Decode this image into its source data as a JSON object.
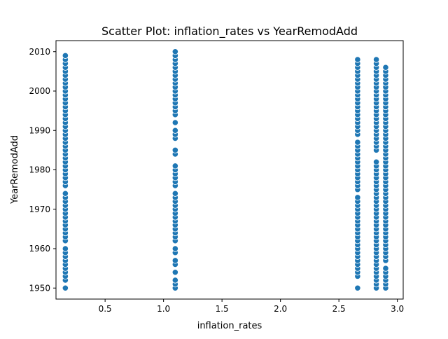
{
  "chart_data": {
    "type": "scatter",
    "title": "Scatter Plot: inflation_rates vs YearRemodAdd",
    "xlabel": "inflation_rates",
    "ylabel": "YearRemodAdd",
    "xlim": [
      0.08,
      3.05
    ],
    "ylim": [
      1947.2,
      2012.8
    ],
    "xticks": [
      0.5,
      1.0,
      1.5,
      2.0,
      2.5,
      3.0
    ],
    "xtick_labels": [
      "0.5",
      "1.0",
      "1.5",
      "2.0",
      "2.5",
      "3.0"
    ],
    "yticks": [
      1950,
      1960,
      1970,
      1980,
      1990,
      2000,
      2010
    ],
    "ytick_labels": [
      "1950",
      "1960",
      "1970",
      "1980",
      "1990",
      "2000",
      "2010"
    ],
    "grid": false,
    "marker_color": "#1f77b4",
    "marker_edge_color": "#ffffff",
    "series": [
      {
        "x_value": 0.16,
        "years": [
          1950,
          1952,
          1953,
          1954,
          1955,
          1956,
          1957,
          1958,
          1959,
          1960,
          1962,
          1963,
          1964,
          1965,
          1966,
          1967,
          1968,
          1969,
          1970,
          1971,
          1972,
          1973,
          1974,
          1976,
          1977,
          1978,
          1979,
          1980,
          1981,
          1982,
          1983,
          1984,
          1985,
          1986,
          1987,
          1988,
          1989,
          1990,
          1991,
          1992,
          1993,
          1994,
          1995,
          1996,
          1997,
          1998,
          1999,
          2000,
          2001,
          2002,
          2003,
          2004,
          2005,
          2006,
          2007,
          2008,
          2009
        ]
      },
      {
        "x_value": 1.1,
        "years": [
          1950,
          1951,
          1952,
          1954,
          1956,
          1957,
          1959,
          1960,
          1962,
          1963,
          1964,
          1965,
          1966,
          1967,
          1968,
          1969,
          1970,
          1971,
          1972,
          1973,
          1974,
          1976,
          1977,
          1978,
          1979,
          1980,
          1981,
          1984,
          1985,
          1988,
          1989,
          1990,
          1992,
          1994,
          1995,
          1996,
          1997,
          1998,
          1999,
          2000,
          2001,
          2002,
          2003,
          2004,
          2005,
          2006,
          2007,
          2008,
          2009,
          2010
        ]
      },
      {
        "x_value": 2.66,
        "years": [
          1950,
          1953,
          1954,
          1955,
          1956,
          1957,
          1958,
          1959,
          1960,
          1961,
          1962,
          1963,
          1964,
          1965,
          1966,
          1967,
          1968,
          1969,
          1970,
          1971,
          1972,
          1973,
          1975,
          1976,
          1977,
          1978,
          1979,
          1980,
          1981,
          1982,
          1983,
          1984,
          1985,
          1986,
          1987,
          1989,
          1990,
          1991,
          1992,
          1993,
          1994,
          1995,
          1996,
          1997,
          1998,
          1999,
          2000,
          2001,
          2002,
          2003,
          2004,
          2005,
          2006,
          2007,
          2008
        ]
      },
      {
        "x_value": 2.82,
        "years": [
          1950,
          1951,
          1952,
          1953,
          1954,
          1955,
          1956,
          1957,
          1958,
          1959,
          1960,
          1961,
          1962,
          1963,
          1964,
          1965,
          1966,
          1967,
          1968,
          1969,
          1970,
          1971,
          1972,
          1973,
          1974,
          1975,
          1976,
          1977,
          1978,
          1979,
          1980,
          1981,
          1982,
          1985,
          1986,
          1987,
          1988,
          1989,
          1990,
          1991,
          1992,
          1993,
          1994,
          1995,
          1996,
          1997,
          1998,
          1999,
          2000,
          2001,
          2002,
          2003,
          2004,
          2005,
          2006,
          2007,
          2008
        ]
      },
      {
        "x_value": 2.9,
        "years": [
          1950,
          1951,
          1952,
          1953,
          1954,
          1955,
          1957,
          1958,
          1959,
          1960,
          1961,
          1962,
          1963,
          1964,
          1965,
          1966,
          1967,
          1968,
          1969,
          1970,
          1971,
          1972,
          1973,
          1974,
          1975,
          1976,
          1977,
          1978,
          1979,
          1980,
          1981,
          1982,
          1983,
          1984,
          1985,
          1986,
          1987,
          1988,
          1989,
          1990,
          1991,
          1992,
          1993,
          1994,
          1995,
          1996,
          1997,
          1998,
          1999,
          2000,
          2001,
          2002,
          2003,
          2004,
          2005,
          2006
        ]
      }
    ]
  }
}
